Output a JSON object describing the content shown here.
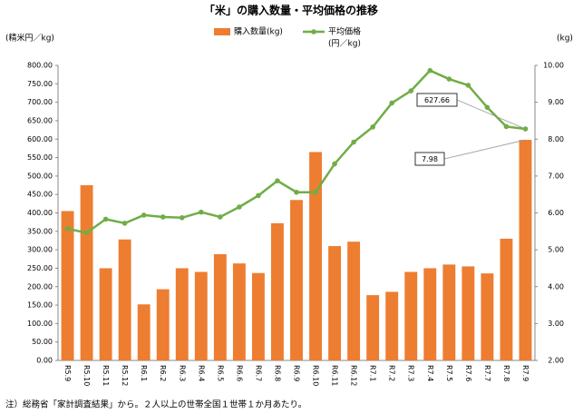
{
  "chart_data": {
    "type": "bar+line",
    "title": "「米」の購入数量・平均価格の推移",
    "y_label": "(精米円／kg)",
    "y2_label": "(kg)",
    "note": "注）総務省「家計調査結果」から。２人以上の世帯全国１世帯１か月あたり。",
    "categories": [
      "R5.9",
      "R5.10",
      "R5.11",
      "R5.12",
      "R6.1",
      "R6.2",
      "R6.3",
      "R6.4",
      "R6.5",
      "R6.6",
      "R6.7",
      "R6.8",
      "R6.9",
      "R6.10",
      "R6.11",
      "R6.12",
      "R7.1",
      "R7.2",
      "R7.3",
      "R7.4",
      "R7.5",
      "R7.6",
      "R7.7",
      "R7.8",
      "R7.9"
    ],
    "series": [
      {
        "name": "購入数量(kg)",
        "type": "bar",
        "axis": "y2",
        "color": "#ed7d31",
        "values": [
          6.05,
          6.75,
          4.5,
          5.28,
          3.52,
          3.93,
          4.5,
          4.4,
          4.88,
          4.63,
          4.37,
          5.72,
          6.35,
          7.65,
          5.1,
          5.22,
          3.77,
          3.86,
          4.4,
          4.5,
          4.6,
          4.55,
          4.36,
          5.3,
          7.98
        ],
        "value_labels": [
          null,
          null,
          null,
          null,
          null,
          null,
          null,
          null,
          null,
          null,
          null,
          null,
          null,
          null,
          null,
          null,
          null,
          null,
          null,
          null,
          null,
          null,
          null,
          null,
          "7.98"
        ]
      },
      {
        "name": "平均価格",
        "name_note": "(円／kg)",
        "type": "line",
        "axis": "y",
        "color": "#70ad47",
        "values": [
          357,
          346,
          383,
          372,
          394,
          389,
          387,
          402,
          389,
          416,
          447,
          487,
          456,
          456,
          533,
          592,
          633,
          698,
          731,
          786,
          763,
          746,
          686,
          634,
          627.66
        ],
        "value_labels": [
          null,
          null,
          null,
          null,
          null,
          null,
          null,
          null,
          null,
          null,
          null,
          null,
          null,
          null,
          null,
          null,
          null,
          null,
          null,
          null,
          null,
          null,
          null,
          null,
          "627.66"
        ]
      }
    ],
    "ylim": [
      0,
      800
    ],
    "yticks": [
      {
        "value": 0,
        "label": "0.00"
      },
      {
        "value": 50,
        "label": "50.00"
      },
      {
        "value": 100,
        "label": "100.00"
      },
      {
        "value": 150,
        "label": "150.00"
      },
      {
        "value": 200,
        "label": "200.00"
      },
      {
        "value": 250,
        "label": "250.00"
      },
      {
        "value": 300,
        "label": "300.00"
      },
      {
        "value": 350,
        "label": "350.00"
      },
      {
        "value": 400,
        "label": "400.00"
      },
      {
        "value": 450,
        "label": "450.00"
      },
      {
        "value": 500,
        "label": "500.00"
      },
      {
        "value": 550,
        "label": "550.00"
      },
      {
        "value": 600,
        "label": "600.00"
      },
      {
        "value": 650,
        "label": "650.00"
      },
      {
        "value": 700,
        "label": "700.00"
      },
      {
        "value": 750,
        "label": "750.00"
      },
      {
        "value": 800,
        "label": "800.00"
      }
    ],
    "y2lim": [
      2,
      10
    ],
    "y2ticks": [
      {
        "value": 2,
        "label": "2.00"
      },
      {
        "value": 3,
        "label": "3.00"
      },
      {
        "value": 4,
        "label": "4.00"
      },
      {
        "value": 5,
        "label": "5.00"
      },
      {
        "value": 6,
        "label": "6.00"
      },
      {
        "value": 7,
        "label": "7.00"
      },
      {
        "value": 8,
        "label": "8.00"
      },
      {
        "value": 9,
        "label": "9.00"
      },
      {
        "value": 10,
        "label": "10.00"
      }
    ],
    "grid": false
  }
}
